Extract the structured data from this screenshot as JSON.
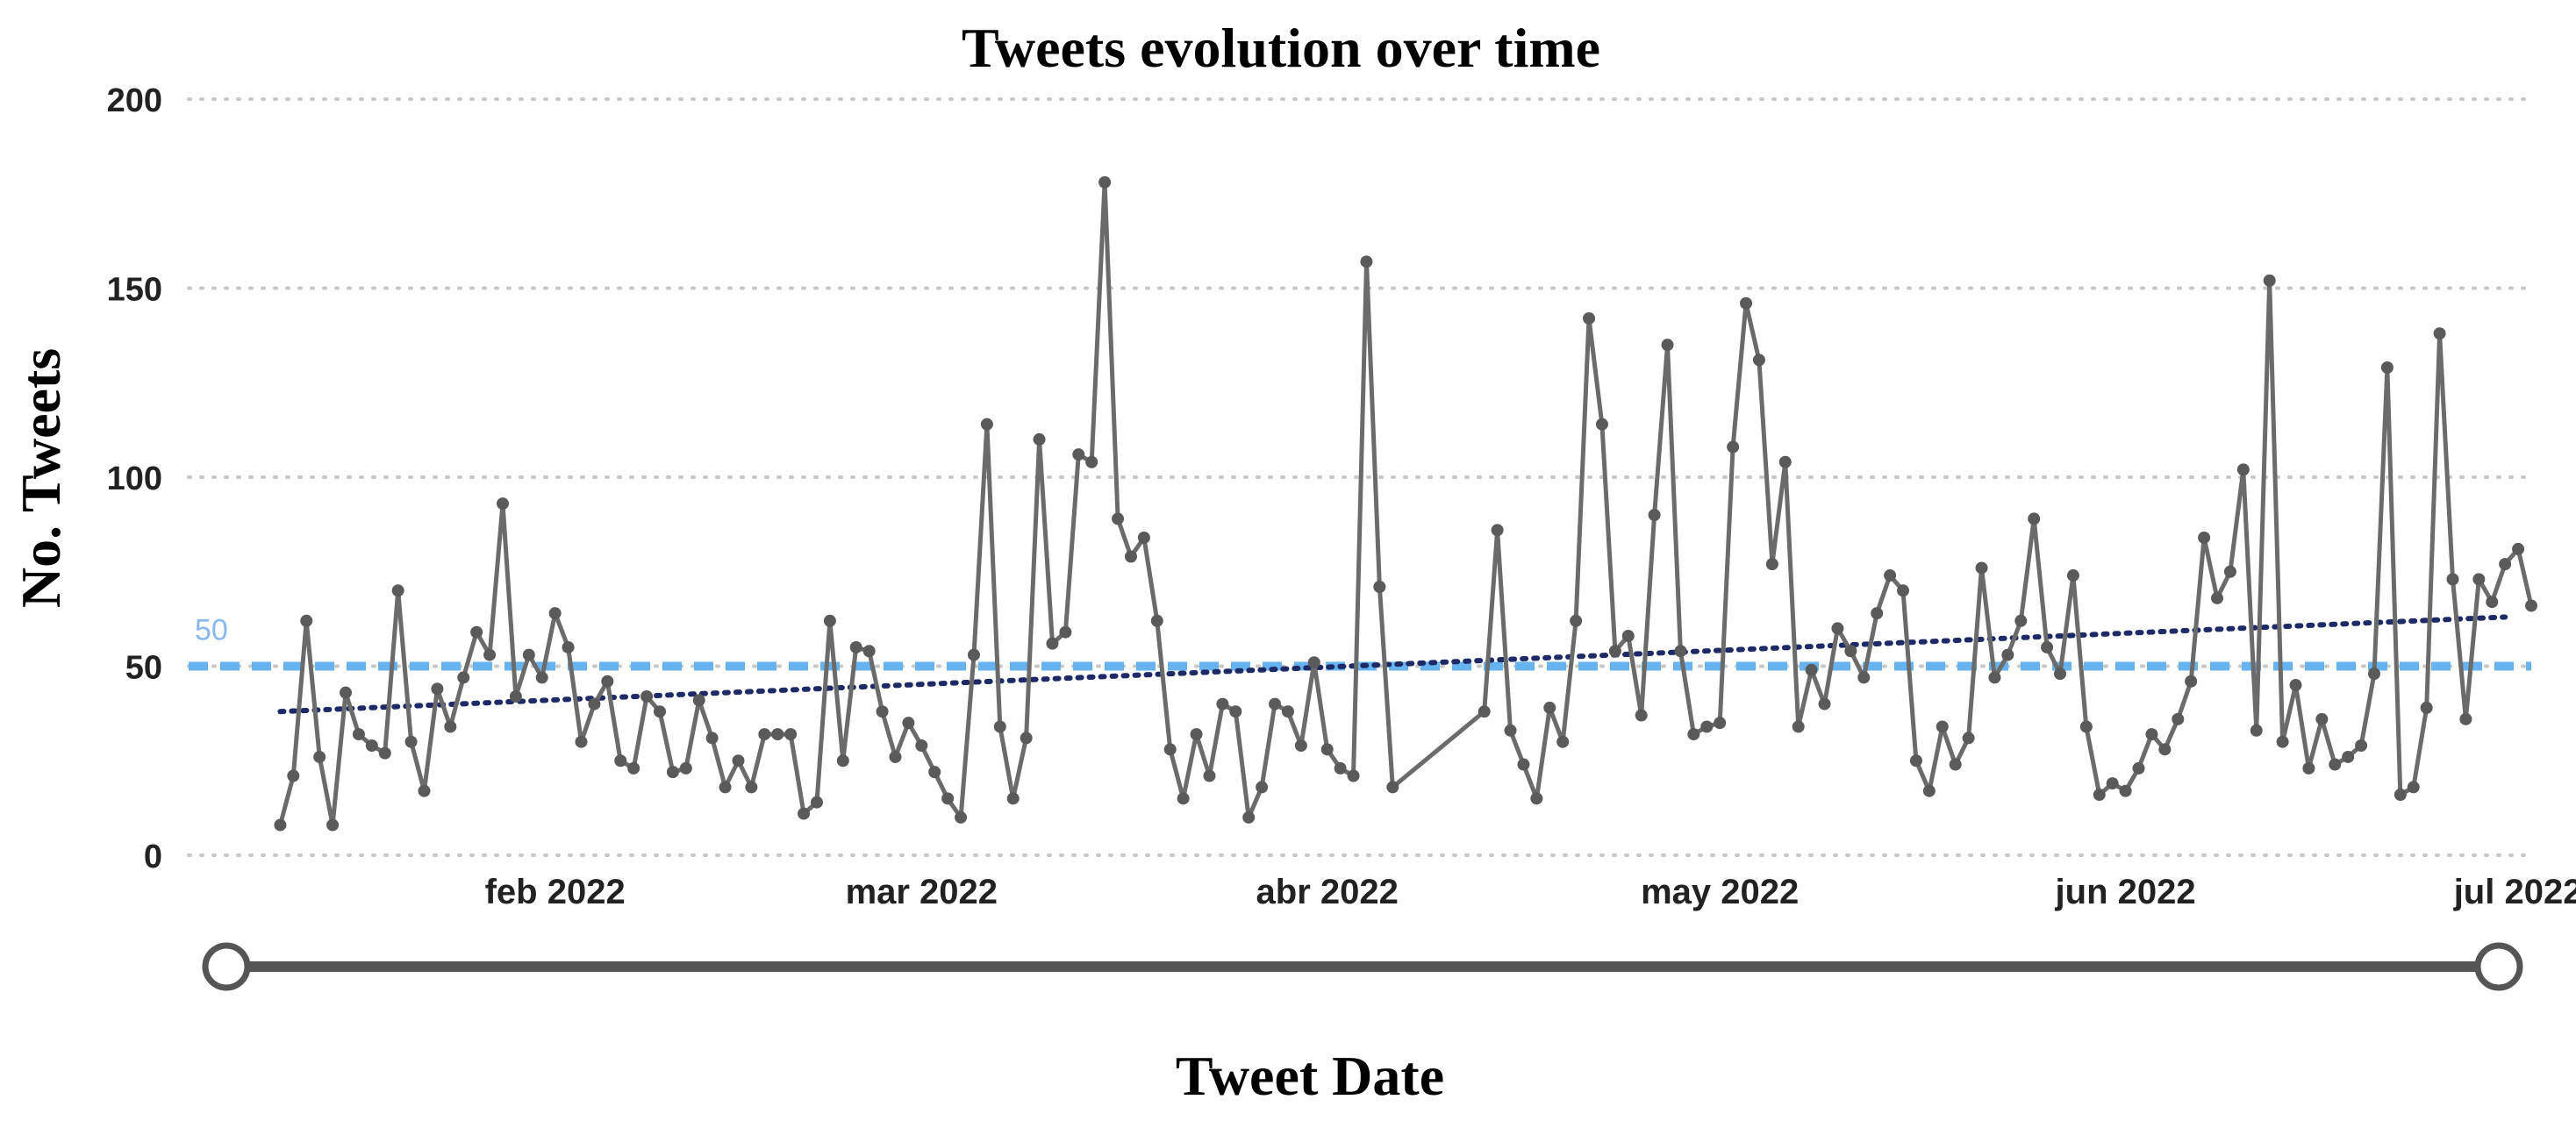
{
  "chart_data": {
    "type": "line",
    "title": "Tweets evolution over time",
    "xlabel": "Tweet Date",
    "ylabel": "No. Tweets",
    "ylim": [
      0,
      200
    ],
    "yticks": [
      0,
      50,
      100,
      150,
      200
    ],
    "xlim": [
      "2022-01-04",
      "2022-07-02"
    ],
    "xticks": [
      {
        "date": "2022-02-01",
        "label": "feb 2022"
      },
      {
        "date": "2022-03-01",
        "label": "mar 2022"
      },
      {
        "date": "2022-04-01",
        "label": "abr 2022"
      },
      {
        "date": "2022-05-01",
        "label": "may 2022"
      },
      {
        "date": "2022-06-01",
        "label": "jun 2022"
      },
      {
        "date": "2022-07-01",
        "label": "jul 2022"
      }
    ],
    "grid": true,
    "reference_line": {
      "value": 50,
      "label": "50",
      "color": "#66b3f0",
      "style": "dashed"
    },
    "trend_line": {
      "start": [
        "2022-01-11",
        38
      ],
      "end": [
        "2022-06-30",
        63
      ],
      "color": "#1e2a66",
      "style": "dotted"
    },
    "range_slider": {
      "handles": 2
    },
    "series": [
      {
        "color": "#6b6b6b",
        "points": [
          [
            "2022-01-11",
            8
          ],
          [
            "2022-01-12",
            21
          ],
          [
            "2022-01-13",
            62
          ],
          [
            "2022-01-14",
            26
          ],
          [
            "2022-01-15",
            8
          ],
          [
            "2022-01-16",
            43
          ],
          [
            "2022-01-17",
            32
          ],
          [
            "2022-01-18",
            29
          ],
          [
            "2022-01-19",
            27
          ],
          [
            "2022-01-20",
            70
          ],
          [
            "2022-01-21",
            30
          ],
          [
            "2022-01-22",
            17
          ],
          [
            "2022-01-23",
            44
          ],
          [
            "2022-01-24",
            34
          ],
          [
            "2022-01-25",
            47
          ],
          [
            "2022-01-26",
            59
          ],
          [
            "2022-01-27",
            53
          ],
          [
            "2022-01-28",
            93
          ],
          [
            "2022-01-29",
            42
          ],
          [
            "2022-01-30",
            53
          ],
          [
            "2022-01-31",
            47
          ],
          [
            "2022-02-01",
            64
          ],
          [
            "2022-02-02",
            55
          ],
          [
            "2022-02-03",
            30
          ],
          [
            "2022-02-04",
            40
          ],
          [
            "2022-02-05",
            46
          ],
          [
            "2022-02-06",
            25
          ],
          [
            "2022-02-07",
            23
          ],
          [
            "2022-02-08",
            42
          ],
          [
            "2022-02-09",
            38
          ],
          [
            "2022-02-10",
            22
          ],
          [
            "2022-02-11",
            23
          ],
          [
            "2022-02-12",
            41
          ],
          [
            "2022-02-13",
            31
          ],
          [
            "2022-02-14",
            18
          ],
          [
            "2022-02-15",
            25
          ],
          [
            "2022-02-16",
            18
          ],
          [
            "2022-02-17",
            32
          ],
          [
            "2022-02-18",
            32
          ],
          [
            "2022-02-19",
            32
          ],
          [
            "2022-02-20",
            11
          ],
          [
            "2022-02-21",
            14
          ],
          [
            "2022-02-22",
            62
          ],
          [
            "2022-02-23",
            25
          ],
          [
            "2022-02-24",
            55
          ],
          [
            "2022-02-25",
            54
          ],
          [
            "2022-02-26",
            38
          ],
          [
            "2022-02-27",
            26
          ],
          [
            "2022-02-28",
            35
          ],
          [
            "2022-03-01",
            29
          ],
          [
            "2022-03-02",
            22
          ],
          [
            "2022-03-03",
            15
          ],
          [
            "2022-03-04",
            10
          ],
          [
            "2022-03-05",
            53
          ],
          [
            "2022-03-06",
            114
          ],
          [
            "2022-03-07",
            34
          ],
          [
            "2022-03-08",
            15
          ],
          [
            "2022-03-09",
            31
          ],
          [
            "2022-03-10",
            110
          ],
          [
            "2022-03-11",
            56
          ],
          [
            "2022-03-12",
            59
          ],
          [
            "2022-03-13",
            106
          ],
          [
            "2022-03-14",
            104
          ],
          [
            "2022-03-15",
            178
          ],
          [
            "2022-03-16",
            89
          ],
          [
            "2022-03-17",
            79
          ],
          [
            "2022-03-18",
            84
          ],
          [
            "2022-03-19",
            62
          ],
          [
            "2022-03-20",
            28
          ],
          [
            "2022-03-21",
            15
          ],
          [
            "2022-03-22",
            32
          ],
          [
            "2022-03-23",
            21
          ],
          [
            "2022-03-24",
            40
          ],
          [
            "2022-03-25",
            38
          ],
          [
            "2022-03-26",
            10
          ],
          [
            "2022-03-27",
            18
          ],
          [
            "2022-03-28",
            40
          ],
          [
            "2022-03-29",
            38
          ],
          [
            "2022-03-30",
            29
          ],
          [
            "2022-03-31",
            51
          ],
          [
            "2022-04-01",
            28
          ],
          [
            "2022-04-02",
            23
          ],
          [
            "2022-04-03",
            21
          ],
          [
            "2022-04-04",
            157
          ],
          [
            "2022-04-05",
            71
          ],
          [
            "2022-04-06",
            18
          ],
          [
            "2022-04-13",
            38
          ],
          [
            "2022-04-14",
            86
          ],
          [
            "2022-04-15",
            33
          ],
          [
            "2022-04-16",
            24
          ],
          [
            "2022-04-17",
            15
          ],
          [
            "2022-04-18",
            39
          ],
          [
            "2022-04-19",
            30
          ],
          [
            "2022-04-20",
            62
          ],
          [
            "2022-04-21",
            142
          ],
          [
            "2022-04-22",
            114
          ],
          [
            "2022-04-23",
            54
          ],
          [
            "2022-04-24",
            58
          ],
          [
            "2022-04-25",
            37
          ],
          [
            "2022-04-26",
            90
          ],
          [
            "2022-04-27",
            135
          ],
          [
            "2022-04-28",
            54
          ],
          [
            "2022-04-29",
            32
          ],
          [
            "2022-04-30",
            34
          ],
          [
            "2022-05-01",
            35
          ],
          [
            "2022-05-02",
            108
          ],
          [
            "2022-05-03",
            146
          ],
          [
            "2022-05-04",
            131
          ],
          [
            "2022-05-05",
            77
          ],
          [
            "2022-05-06",
            104
          ],
          [
            "2022-05-07",
            34
          ],
          [
            "2022-05-08",
            49
          ],
          [
            "2022-05-09",
            40
          ],
          [
            "2022-05-10",
            60
          ],
          [
            "2022-05-11",
            54
          ],
          [
            "2022-05-12",
            47
          ],
          [
            "2022-05-13",
            64
          ],
          [
            "2022-05-14",
            74
          ],
          [
            "2022-05-15",
            70
          ],
          [
            "2022-05-16",
            25
          ],
          [
            "2022-05-17",
            17
          ],
          [
            "2022-05-18",
            34
          ],
          [
            "2022-05-19",
            24
          ],
          [
            "2022-05-20",
            31
          ],
          [
            "2022-05-21",
            76
          ],
          [
            "2022-05-22",
            47
          ],
          [
            "2022-05-23",
            53
          ],
          [
            "2022-05-24",
            62
          ],
          [
            "2022-05-25",
            89
          ],
          [
            "2022-05-26",
            55
          ],
          [
            "2022-05-27",
            48
          ],
          [
            "2022-05-28",
            74
          ],
          [
            "2022-05-29",
            34
          ],
          [
            "2022-05-30",
            16
          ],
          [
            "2022-05-31",
            19
          ],
          [
            "2022-06-01",
            17
          ],
          [
            "2022-06-02",
            23
          ],
          [
            "2022-06-03",
            32
          ],
          [
            "2022-06-04",
            28
          ],
          [
            "2022-06-05",
            36
          ],
          [
            "2022-06-06",
            46
          ],
          [
            "2022-06-07",
            84
          ],
          [
            "2022-06-08",
            68
          ],
          [
            "2022-06-09",
            75
          ],
          [
            "2022-06-10",
            102
          ],
          [
            "2022-06-11",
            33
          ],
          [
            "2022-06-12",
            152
          ],
          [
            "2022-06-13",
            30
          ],
          [
            "2022-06-14",
            45
          ],
          [
            "2022-06-15",
            23
          ],
          [
            "2022-06-16",
            36
          ],
          [
            "2022-06-17",
            24
          ],
          [
            "2022-06-18",
            26
          ],
          [
            "2022-06-19",
            29
          ],
          [
            "2022-06-20",
            48
          ],
          [
            "2022-06-21",
            129
          ],
          [
            "2022-06-22",
            16
          ],
          [
            "2022-06-23",
            18
          ],
          [
            "2022-06-24",
            39
          ],
          [
            "2022-06-25",
            138
          ],
          [
            "2022-06-26",
            73
          ],
          [
            "2022-06-27",
            36
          ],
          [
            "2022-06-28",
            73
          ],
          [
            "2022-06-29",
            67
          ],
          [
            "2022-06-30",
            77
          ],
          [
            "2022-07-01",
            81
          ],
          [
            "2022-07-02",
            66
          ]
        ]
      }
    ]
  }
}
